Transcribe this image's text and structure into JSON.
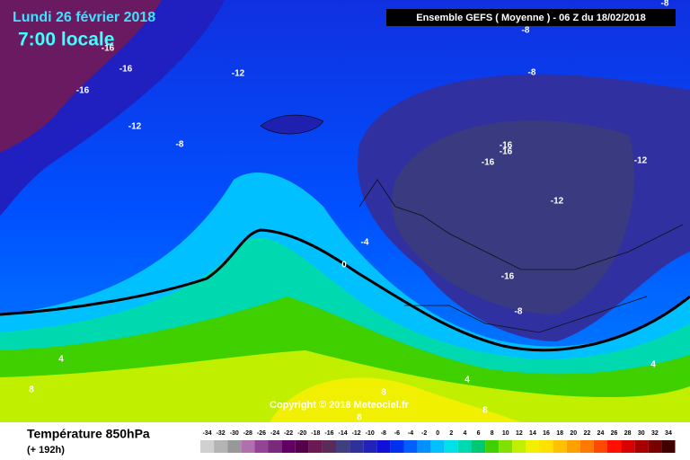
{
  "header": {
    "date": "Lundi 26 février 2018",
    "time": "7:00 locale",
    "model": "Ensemble GEFS  ( Moyenne )  - 06 Z du 18/02/2018"
  },
  "copyright": "Copyright © 2018 Meteociel.fr",
  "legend": {
    "title": "Température 850hPa",
    "lead": "(+ 192h)",
    "values": [
      -34,
      -32,
      -30,
      -28,
      -26,
      -24,
      -22,
      -20,
      -18,
      -16,
      -14,
      -12,
      -10,
      -8,
      -6,
      -4,
      -2,
      0,
      2,
      4,
      6,
      8,
      10,
      12,
      14,
      16,
      18,
      20,
      22,
      24,
      26,
      28,
      30,
      32,
      34
    ],
    "colors": [
      "#d0d0d0",
      "#b4b4b4",
      "#989898",
      "#b070b0",
      "#944494",
      "#7a2a7a",
      "#640064",
      "#54004a",
      "#6a1a50",
      "#5a2a5a",
      "#404080",
      "#30309a",
      "#2222b8",
      "#1010d8",
      "#0030f0",
      "#0060ff",
      "#0090ff",
      "#00c0ff",
      "#00e0e8",
      "#00d8b0",
      "#00c870",
      "#40d000",
      "#80e000",
      "#c0f000",
      "#f0f000",
      "#ffe000",
      "#ffc000",
      "#ffa000",
      "#ff7800",
      "#ff4800",
      "#ff1000",
      "#d80000",
      "#a80000",
      "#780000",
      "#400000"
    ]
  },
  "contour_labels": [
    -16,
    -16,
    -16,
    -12,
    -12,
    -8,
    -8,
    -8,
    -8,
    -16,
    -16,
    -16,
    -12,
    -12,
    -4,
    0,
    -16,
    -8,
    4,
    8,
    4,
    8,
    8,
    4,
    8
  ]
}
